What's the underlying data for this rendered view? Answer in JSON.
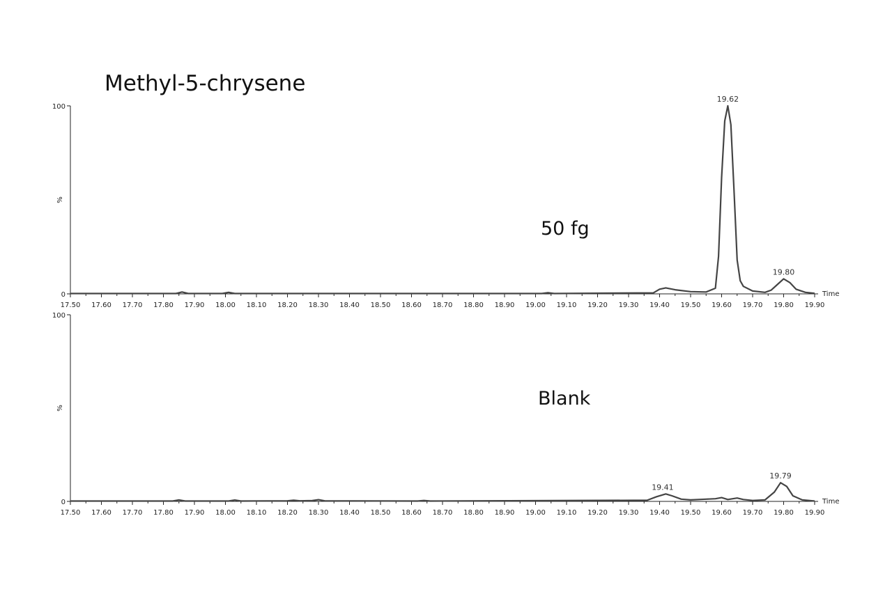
{
  "title": "Methyl-5-chrysene",
  "chart_data": [
    {
      "type": "line",
      "annotation": "50 fg",
      "xlabel": "Time",
      "ylabel": "%",
      "xlim": [
        17.5,
        19.9
      ],
      "ylim": [
        0,
        100
      ],
      "x_ticks": [
        "17.50",
        "17.60",
        "17.70",
        "17.80",
        "17.90",
        "18.00",
        "18.10",
        "18.20",
        "18.30",
        "18.40",
        "18.50",
        "18.60",
        "18.70",
        "18.80",
        "18.90",
        "19.00",
        "19.10",
        "19.20",
        "19.30",
        "19.40",
        "19.50",
        "19.60",
        "19.70",
        "19.80",
        "19.90"
      ],
      "y_ticks": [
        "0",
        "100"
      ],
      "peak_labels": [
        {
          "x": 19.62,
          "y": 100,
          "label": "19.62"
        },
        {
          "x": 19.8,
          "y": 8,
          "label": "19.80"
        }
      ],
      "series": [
        {
          "x": [
            17.5,
            17.84,
            17.86,
            17.88,
            17.99,
            18.01,
            18.03,
            19.02,
            19.04,
            19.06,
            19.38,
            19.4,
            19.42,
            19.45,
            19.5,
            19.55,
            19.58,
            19.59,
            19.6,
            19.61,
            19.62,
            19.63,
            19.64,
            19.65,
            19.66,
            19.67,
            19.7,
            19.74,
            19.76,
            19.78,
            19.8,
            19.82,
            19.84,
            19.87,
            19.9
          ],
          "y": [
            0.2,
            0.2,
            1,
            0.2,
            0.2,
            0.8,
            0.2,
            0.2,
            0.6,
            0.2,
            0.5,
            2.5,
            3.2,
            2.2,
            1.2,
            1,
            3,
            20,
            62,
            92,
            100,
            90,
            55,
            18,
            7,
            4,
            1.5,
            0.8,
            2,
            5,
            8,
            6,
            2.5,
            0.8,
            0.3
          ]
        }
      ]
    },
    {
      "type": "line",
      "annotation": "Blank",
      "xlabel": "Time",
      "ylabel": "%",
      "xlim": [
        17.5,
        19.9
      ],
      "ylim": [
        0,
        100
      ],
      "x_ticks": [
        "17.50",
        "17.60",
        "17.70",
        "17.80",
        "17.90",
        "18.00",
        "18.10",
        "18.20",
        "18.30",
        "18.40",
        "18.50",
        "18.60",
        "18.70",
        "18.80",
        "18.90",
        "19.00",
        "19.10",
        "19.20",
        "19.30",
        "19.40",
        "19.50",
        "19.60",
        "19.70",
        "19.80",
        "19.90"
      ],
      "y_ticks": [
        "0",
        "100"
      ],
      "peak_labels": [
        {
          "x": 19.41,
          "y": 4,
          "label": "19.41"
        },
        {
          "x": 19.79,
          "y": 10,
          "label": "19.79"
        }
      ],
      "series": [
        {
          "x": [
            17.5,
            17.83,
            17.85,
            17.87,
            18.01,
            18.03,
            18.05,
            18.2,
            18.22,
            18.24,
            18.28,
            18.3,
            18.32,
            18.62,
            18.64,
            18.66,
            19.36,
            19.39,
            19.42,
            19.44,
            19.47,
            19.5,
            19.55,
            19.58,
            19.6,
            19.62,
            19.65,
            19.67,
            19.7,
            19.74,
            19.77,
            19.79,
            19.81,
            19.83,
            19.86,
            19.9
          ],
          "y": [
            0.2,
            0.2,
            0.8,
            0.2,
            0.2,
            0.7,
            0.2,
            0.3,
            0.6,
            0.3,
            0.4,
            0.9,
            0.3,
            0.2,
            0.5,
            0.2,
            0.6,
            2.5,
            4,
            3,
            1.2,
            0.8,
            1.2,
            1.4,
            2,
            1,
            1.8,
            1,
            0.5,
            0.8,
            5,
            10,
            8,
            3,
            0.8,
            0.2
          ]
        }
      ]
    }
  ]
}
